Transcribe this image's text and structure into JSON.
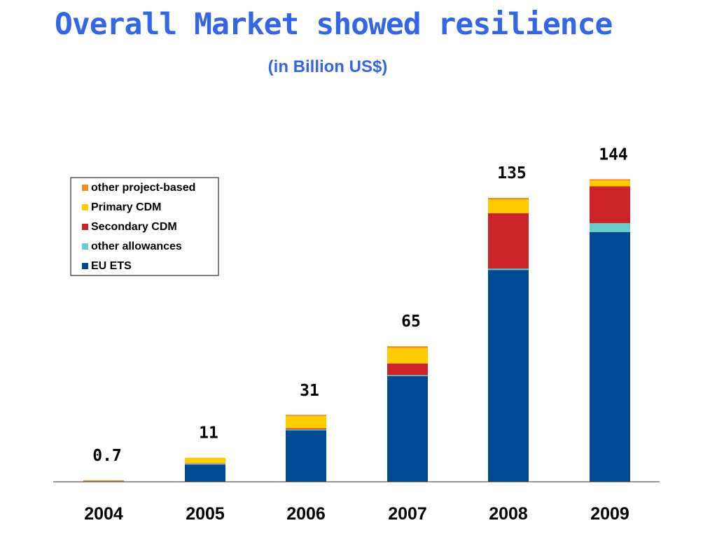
{
  "chart_data": {
    "type": "bar",
    "stacked": true,
    "title": "Overall Market showed resilience",
    "subtitle": "(in Billion US$)",
    "categories": [
      "2004",
      "2005",
      "2006",
      "2007",
      "2008",
      "2009"
    ],
    "totals": [
      "0.7",
      "11",
      "31",
      "65",
      "135",
      "144"
    ],
    "series": [
      {
        "name": "EU ETS",
        "color": "#004a94",
        "values": [
          0.0,
          8.2,
          24.4,
          50.1,
          100.5,
          118.5
        ]
      },
      {
        "name": "other allowances",
        "color": "#66cccc",
        "values": [
          0.0,
          0.4,
          0.5,
          0.5,
          0.6,
          4.2
        ]
      },
      {
        "name": "Secondary CDM",
        "color": "#cc2229",
        "values": [
          0.0,
          0.1,
          0.4,
          5.5,
          26.3,
          17.5
        ]
      },
      {
        "name": "Primary CDM",
        "color": "#ffcc00",
        "values": [
          0.0,
          2.7,
          5.8,
          7.4,
          6.5,
          2.7
        ]
      },
      {
        "name": "other project-based",
        "color": "#f28c1c",
        "values": [
          0.7,
          0.0,
          0.4,
          0.8,
          0.8,
          0.6
        ]
      }
    ],
    "ylim": [
      0,
      145
    ],
    "legend_position": "top-left",
    "legend_order": [
      "other project-based",
      "Primary CDM",
      "Secondary CDM",
      "other allowances",
      "EU ETS"
    ],
    "grid": false
  }
}
